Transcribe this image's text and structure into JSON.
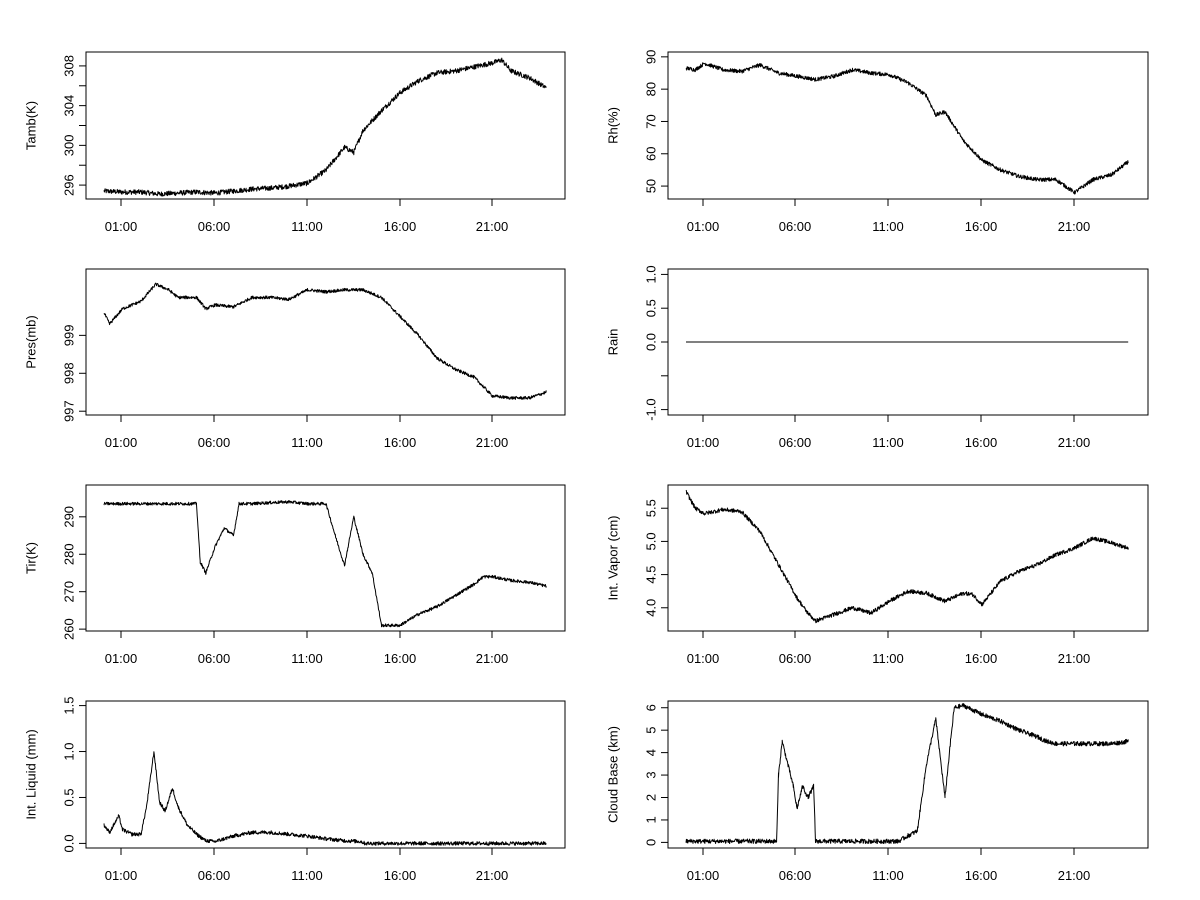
{
  "chart_data": [
    {
      "type": "line",
      "ylabel": "Tamb(K)",
      "xticks": [
        "01:00",
        "06:00",
        "11:00",
        "16:00",
        "21:00"
      ],
      "xlim": [
        0,
        24
      ],
      "ylim": [
        294.6,
        309.4
      ],
      "yticks": [
        296,
        298,
        300,
        302,
        304,
        306,
        308
      ],
      "yticklabels": [
        "296",
        "",
        "300",
        "",
        "304",
        "",
        "308"
      ],
      "x": [
        0,
        1,
        2,
        3,
        4,
        5,
        6,
        7,
        8,
        9,
        10,
        11,
        12,
        13,
        13.5,
        14,
        15,
        16,
        17,
        18,
        19,
        20,
        21,
        21.5,
        22,
        23,
        23.9
      ],
      "y": [
        295.4,
        295.3,
        295.3,
        295.1,
        295.2,
        295.3,
        295.2,
        295.4,
        295.6,
        295.7,
        295.9,
        296.2,
        297.5,
        299.8,
        299.3,
        301.5,
        303.5,
        305.3,
        306.5,
        307.3,
        307.5,
        307.9,
        308.3,
        308.6,
        307.5,
        306.8,
        305.8
      ],
      "noise": 0.25
    },
    {
      "type": "line",
      "ylabel": "Rh(%)",
      "xticks": [
        "01:00",
        "06:00",
        "11:00",
        "16:00",
        "21:00"
      ],
      "xlim": [
        0,
        24
      ],
      "ylim": [
        46,
        91.5
      ],
      "yticks": [
        50,
        60,
        70,
        80,
        90
      ],
      "yticklabels": [
        "50",
        "60",
        "70",
        "80",
        "90"
      ],
      "x": [
        0,
        0.5,
        1,
        2,
        3,
        4,
        5,
        6,
        7,
        8,
        9,
        10,
        11,
        12,
        13,
        13.5,
        14,
        15,
        16,
        17,
        18,
        19,
        20,
        21,
        21.5,
        22,
        23,
        23.9
      ],
      "y": [
        86.5,
        86,
        88,
        86,
        85.5,
        87.5,
        85,
        84,
        83,
        84,
        86,
        85,
        84.5,
        82,
        78,
        72,
        73,
        64,
        58,
        55,
        53,
        52,
        52,
        48,
        50,
        52,
        53.5,
        57.5
      ],
      "noise": 0.6
    },
    {
      "type": "line",
      "ylabel": "Pres(mb)",
      "xticks": [
        "01:00",
        "06:00",
        "11:00",
        "16:00",
        "21:00"
      ],
      "xlim": [
        0,
        24
      ],
      "ylim": [
        996.9,
        1000.75
      ],
      "yticks": [
        997,
        998,
        999
      ],
      "yticklabels": [
        "997",
        "998",
        "999"
      ],
      "x": [
        0,
        0.3,
        1,
        2,
        2.8,
        3.5,
        4,
        5,
        5.5,
        6,
        7,
        8,
        9,
        10,
        11,
        12,
        13,
        14,
        15,
        16,
        17,
        18,
        19,
        20,
        21,
        22,
        23,
        23.9
      ],
      "y": [
        999.6,
        999.3,
        999.7,
        999.9,
        1000.35,
        1000.2,
        1000.0,
        1000.0,
        999.7,
        999.8,
        999.75,
        1000.0,
        1000.0,
        999.95,
        1000.2,
        1000.15,
        1000.2,
        1000.2,
        1000.0,
        999.5,
        999.0,
        998.4,
        998.1,
        997.9,
        997.4,
        997.35,
        997.35,
        997.5
      ],
      "noise": 0.04
    },
    {
      "type": "line",
      "ylabel": "Rain",
      "xticks": [
        "01:00",
        "06:00",
        "11:00",
        "16:00",
        "21:00"
      ],
      "xlim": [
        0,
        24
      ],
      "ylim": [
        -1.08,
        1.08
      ],
      "yticks": [
        -1,
        -0.5,
        0,
        0.5,
        1
      ],
      "yticklabels": [
        "-1.0",
        "",
        "0.0",
        "0.5",
        "1.0"
      ],
      "x": [
        0,
        23.9
      ],
      "y": [
        0,
        0
      ],
      "noise": 0
    },
    {
      "type": "line",
      "ylabel": "Tir(K)",
      "xticks": [
        "01:00",
        "06:00",
        "11:00",
        "16:00",
        "21:00"
      ],
      "xlim": [
        0,
        24
      ],
      "ylim": [
        259.5,
        298.5
      ],
      "yticks": [
        260,
        270,
        280,
        290
      ],
      "yticklabels": [
        "260",
        "270",
        "280",
        "290"
      ],
      "x": [
        0,
        1,
        2,
        3,
        4,
        5,
        5.2,
        5.5,
        6,
        6.5,
        7,
        7.3,
        8,
        9,
        10,
        11,
        12,
        12.5,
        13,
        13.5,
        14,
        14.5,
        15,
        16,
        17,
        18,
        19,
        20,
        20.5,
        21,
        22,
        23,
        23.9
      ],
      "y": [
        293.5,
        293.5,
        293.5,
        293.5,
        293.5,
        293.5,
        278,
        275,
        282,
        287,
        285,
        293.5,
        293.5,
        293.8,
        294,
        293.5,
        293.5,
        285,
        277,
        290,
        280,
        275,
        261,
        261,
        264,
        266,
        269,
        272,
        274,
        274,
        273,
        272.5,
        271.5
      ],
      "noise": 0.4
    },
    {
      "type": "line",
      "ylabel": "Int. Vapor (cm)",
      "xticks": [
        "01:00",
        "06:00",
        "11:00",
        "16:00",
        "21:00"
      ],
      "xlim": [
        0,
        24
      ],
      "ylim": [
        3.65,
        5.85
      ],
      "yticks": [
        4.0,
        4.5,
        5.0,
        5.5
      ],
      "yticklabels": [
        "4.0",
        "4.5",
        "5.0",
        "5.5"
      ],
      "x": [
        0,
        0.5,
        1,
        2,
        3,
        4,
        5,
        6,
        6.5,
        7,
        8,
        9,
        10,
        11,
        12,
        13,
        14,
        15,
        15.5,
        16,
        17,
        18,
        19,
        20,
        21,
        22,
        23,
        23.9
      ],
      "y": [
        5.75,
        5.5,
        5.42,
        5.48,
        5.45,
        5.15,
        4.65,
        4.15,
        3.95,
        3.8,
        3.9,
        4.0,
        3.92,
        4.1,
        4.25,
        4.22,
        4.1,
        4.22,
        4.2,
        4.05,
        4.4,
        4.55,
        4.65,
        4.8,
        4.9,
        5.05,
        4.98,
        4.9
      ],
      "noise": 0.03
    },
    {
      "type": "line",
      "ylabel": "Int. Liquid (mm)",
      "xticks": [
        "01:00",
        "06:00",
        "11:00",
        "16:00",
        "21:00"
      ],
      "xlim": [
        0,
        24
      ],
      "ylim": [
        -0.05,
        1.55
      ],
      "yticks": [
        0,
        0.5,
        1.0,
        1.5
      ],
      "yticklabels": [
        "0.0",
        "0.5",
        "1.0",
        "1.5"
      ],
      "x": [
        0,
        0.3,
        0.8,
        1,
        1.5,
        2,
        2.3,
        2.7,
        3,
        3.3,
        3.7,
        4,
        4.5,
        5,
        5.5,
        6,
        7,
        8,
        9,
        10,
        11,
        12,
        13,
        13.9,
        14.1,
        16,
        19,
        21,
        23.9
      ],
      "y": [
        0.2,
        0.12,
        0.3,
        0.15,
        0.1,
        0.1,
        0.4,
        1.0,
        0.45,
        0.35,
        0.6,
        0.4,
        0.2,
        0.1,
        0.03,
        0.02,
        0.08,
        0.12,
        0.12,
        0.1,
        0.08,
        0.05,
        0.03,
        0.02,
        0.0,
        0.0,
        0.0,
        0.0,
        0.0
      ],
      "noise": 0.02
    },
    {
      "type": "line",
      "ylabel": "Cloud Base (km)",
      "xticks": [
        "01:00",
        "06:00",
        "11:00",
        "16:00",
        "21:00"
      ],
      "xlim": [
        0,
        24
      ],
      "ylim": [
        -0.25,
        6.3
      ],
      "yticks": [
        0,
        1,
        2,
        3,
        4,
        5,
        6
      ],
      "yticklabels": [
        "0",
        "1",
        "2",
        "3",
        "4",
        "5",
        "6"
      ],
      "x": [
        0,
        4.9,
        5.0,
        5.2,
        5.5,
        5.8,
        6.0,
        6.3,
        6.6,
        6.9,
        7.0,
        11.5,
        12,
        12.5,
        13,
        13.5,
        14,
        14.3,
        14.5,
        15,
        16,
        17,
        18,
        19,
        19.5,
        20,
        21,
        22,
        23,
        23.9
      ],
      "y": [
        0.05,
        0.05,
        3.0,
        4.5,
        3.5,
        2.5,
        1.5,
        2.5,
        2.0,
        2.5,
        0.05,
        0.05,
        0.3,
        0.5,
        3.5,
        5.5,
        2.0,
        4.5,
        6.0,
        6.1,
        5.7,
        5.4,
        5.0,
        4.7,
        4.5,
        4.4,
        4.4,
        4.4,
        4.4,
        4.5
      ],
      "noise": 0.1
    }
  ]
}
